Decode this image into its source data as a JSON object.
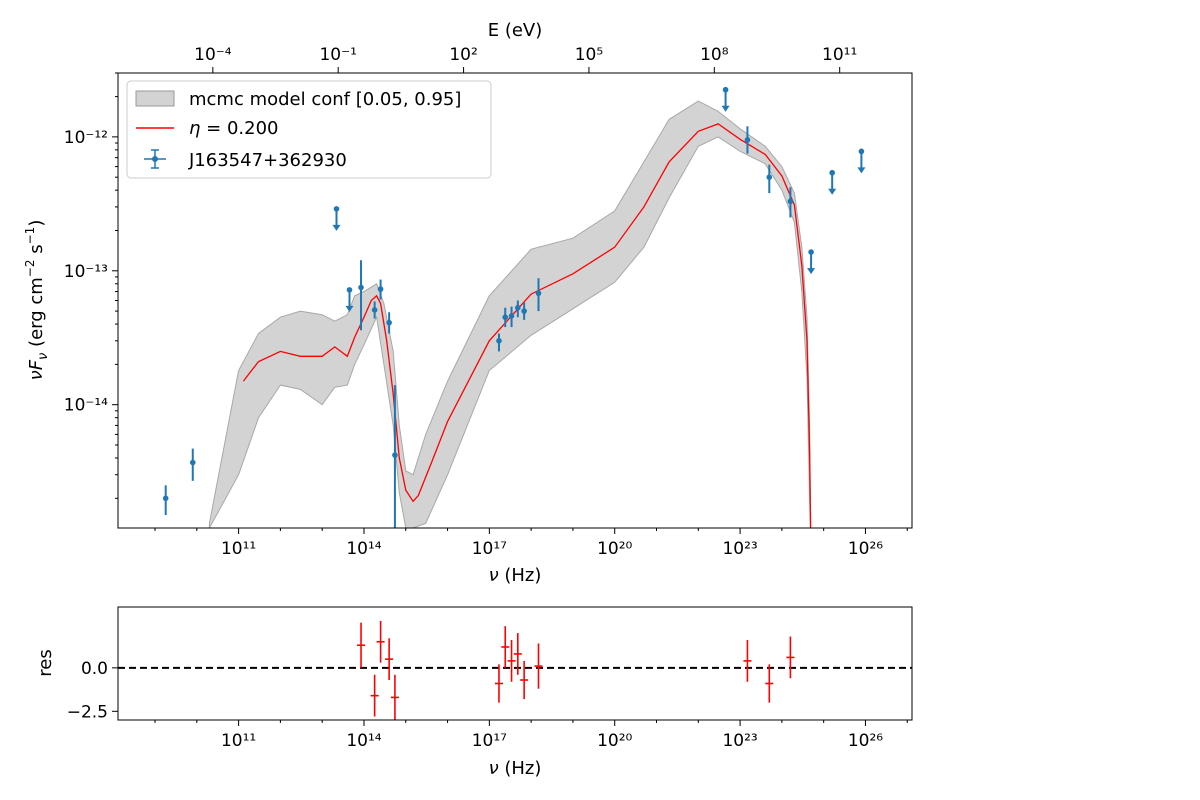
{
  "colors": {
    "data_points": "#1f77b4",
    "model_line": "#ff0000",
    "confidence_band": "#d3d3d3",
    "residuals": "#ff0000",
    "zero_line": "#000000"
  },
  "chart_data": [
    {
      "type": "scatter",
      "panel": "main",
      "xscale": "log",
      "yscale": "log",
      "xlabel": "ν  (Hz)",
      "ylabel": "νF_ν  (erg cm⁻² s⁻¹)",
      "top_xlabel": "E (eV)",
      "xlim": [
        130000000.0,
        1.3e+27
      ],
      "ylim": [
        1.2e-15,
        3e-12
      ],
      "x_ticks": [
        "10¹¹",
        "10¹⁴",
        "10¹⁷",
        "10²⁰",
        "10²³",
        "10²⁶"
      ],
      "x_tick_values": [
        100000000000.0,
        100000000000000.0,
        1e+17,
        1e+20,
        1e+23,
        1e+26
      ],
      "y_ticks": [
        "10⁻¹⁴",
        "10⁻¹³",
        "10⁻¹²"
      ],
      "y_tick_values": [
        1e-14,
        1e-13,
        1e-12
      ],
      "top_ticks": [
        "10⁻⁴",
        "10⁻¹",
        "10²",
        "10⁵",
        "10⁸",
        "10¹¹"
      ],
      "top_tick_values_ev": [
        0.0001,
        0.1,
        100.0,
        100000.0,
        100000000.0,
        100000000000.0
      ],
      "legend_position": "upper-left",
      "legend": [
        {
          "label": "mcmc model conf [0.05, 0.95]",
          "kind": "band"
        },
        {
          "label": "η = 0.200",
          "kind": "line"
        },
        {
          "label": "J163547+362930",
          "kind": "errorbar"
        }
      ],
      "points": [
        {
          "x": 1800000000.0,
          "y": 2e-15,
          "ylo": 1.5e-15,
          "yhi": 2.5e-15
        },
        {
          "x": 8000000000.0,
          "y": 3.7e-15,
          "ylo": 2.7e-15,
          "yhi": 4.7e-15
        },
        {
          "x": 180000000000000.0,
          "y": 5.1e-14,
          "ylo": 4.4e-14,
          "yhi": 5.9e-14
        },
        {
          "x": 250000000000000.0,
          "y": 7.3e-14,
          "ylo": 6.1e-14,
          "yhi": 8.6e-14
        },
        {
          "x": 400000000000000.0,
          "y": 4.1e-14,
          "ylo": 3.4e-14,
          "yhi": 4.9e-14
        },
        {
          "x": 85000000000000.0,
          "y": 7.5e-14,
          "ylo": 3.6e-14,
          "yhi": 1.2e-13
        },
        {
          "x": 550000000000000.0,
          "y": 4.2e-15,
          "ylo": 1.2e-15,
          "yhi": 1.4e-14
        },
        {
          "x": 1.7e+17,
          "y": 3e-14,
          "ylo": 2.5e-14,
          "yhi": 3.4e-14
        },
        {
          "x": 2.4e+17,
          "y": 4.5e-14,
          "ylo": 3.8e-14,
          "yhi": 5.3e-14
        },
        {
          "x": 3.4e+17,
          "y": 4.6e-14,
          "ylo": 3.8e-14,
          "yhi": 5.4e-14
        },
        {
          "x": 4.8e+17,
          "y": 5.3e-14,
          "ylo": 4.5e-14,
          "yhi": 6e-14
        },
        {
          "x": 6.8e+17,
          "y": 5e-14,
          "ylo": 4.3e-14,
          "yhi": 5.8e-14
        },
        {
          "x": 1.5e+18,
          "y": 6.8e-14,
          "ylo": 5e-14,
          "yhi": 8.8e-14
        },
        {
          "x": 1.5e+23,
          "y": 9.5e-13,
          "ylo": 7.5e-13,
          "yhi": 1.2e-12
        },
        {
          "x": 5e+23,
          "y": 5e-13,
          "ylo": 3.8e-13,
          "yhi": 6.2e-13
        },
        {
          "x": 1.6e+24,
          "y": 3.3e-13,
          "ylo": 2.5e-13,
          "yhi": 4.2e-13
        }
      ],
      "upper_limits": [
        {
          "x": 22000000000000.0,
          "y": 2.9e-13
        },
        {
          "x": 45000000000000.0,
          "y": 7.2e-14
        },
        {
          "x": 4.5e+22,
          "y": 2.25e-12
        },
        {
          "x": 5e+24,
          "y": 1.38e-13
        },
        {
          "x": 1.6e+25,
          "y": 5.4e-13
        },
        {
          "x": 8e+25,
          "y": 7.8e-13
        }
      ],
      "model": {
        "x": [
          130000000000.0,
          300000000000.0,
          1000000000000.0,
          3000000000000.0,
          10000000000000.0,
          20000000000000.0,
          40000000000000.0,
          60000000000000.0,
          100000000000000.0,
          150000000000000.0,
          200000000000000.0,
          250000000000000.0,
          350000000000000.0,
          500000000000000.0,
          700000000000000.0,
          1000000000000000.0,
          1500000000000000.0,
          2000000000000000.0,
          4000000000000000.0,
          1e+16,
          1e+17,
          1e+18,
          1e+19,
          1e+20,
          5e+20,
          2e+21,
          1e+22,
          3e+22,
          1e+23,
          4e+23,
          1e+24,
          2e+24,
          3e+24,
          4e+24,
          4.6e+24,
          4.9e+24
        ],
        "y": [
          1.5e-14,
          2.1e-14,
          2.5e-14,
          2.3e-14,
          2.3e-14,
          2.7e-14,
          2.3e-14,
          3.2e-14,
          4.5e-14,
          6e-14,
          6.5e-14,
          5.7e-14,
          3e-14,
          1.2e-14,
          4e-15,
          2.3e-15,
          1.9e-15,
          2.1e-15,
          3.6e-15,
          7.5e-15,
          3e-14,
          6.7e-14,
          9.5e-14,
          1.5e-13,
          3e-13,
          6.5e-13,
          1.1e-12,
          1.25e-12,
          9.6e-13,
          7.4e-13,
          5.1e-13,
          3.1e-13,
          1.1e-13,
          3e-14,
          4.5e-15,
          1e-15
        ]
      },
      "band": {
        "x": [
          20000000000.0,
          100000000000.0,
          300000000000.0,
          1000000000000.0,
          3000000000000.0,
          10000000000000.0,
          20000000000000.0,
          40000000000000.0,
          60000000000000.0,
          100000000000000.0,
          200000000000000.0,
          300000000000000.0,
          500000000000000.0,
          700000000000000.0,
          1000000000000000.0,
          1500000000000000.0,
          3000000000000000.0,
          1e+16,
          1e+17,
          1e+18,
          1e+19,
          1e+20,
          5e+20,
          2e+21,
          1e+22,
          3e+22,
          1e+23,
          4e+23,
          1e+24,
          2e+24,
          3e+24,
          4e+24,
          4.6e+24,
          4.9e+24
        ],
        "upper": [
          1.3e-15,
          1.8e-14,
          3.4e-14,
          4.5e-14,
          5e-14,
          4.7e-14,
          4.2e-14,
          4.7e-14,
          6.5e-14,
          7e-14,
          8e-14,
          5.7e-14,
          2.5e-14,
          7e-15,
          3.2e-15,
          3e-15,
          6e-15,
          1.5e-14,
          6.5e-14,
          1.45e-13,
          1.75e-13,
          2.8e-13,
          6.5e-13,
          1.35e-12,
          1.85e-12,
          1.55e-12,
          1.15e-12,
          8.5e-13,
          6e-13,
          3.8e-13,
          1.5e-13,
          4.5e-14,
          7e-15,
          1.3e-15
        ],
        "lower": [
          1.2e-15,
          3e-15,
          8e-15,
          1.4e-14,
          1.3e-14,
          1e-14,
          1.35e-14,
          1.4e-14,
          2e-14,
          2.8e-14,
          4.5e-14,
          2e-14,
          7e-15,
          2.2e-15,
          1.2e-15,
          1.2e-15,
          1.3e-15,
          3e-15,
          1.8e-14,
          3.3e-14,
          5.2e-14,
          8.2e-14,
          1.5e-13,
          3.5e-13,
          8.5e-13,
          1e-12,
          7.8e-13,
          6.3e-13,
          4e-13,
          2.3e-13,
          7e-14,
          1.6e-14,
          2e-15,
          1e-15
        ]
      }
    },
    {
      "type": "scatter",
      "panel": "residuals",
      "xscale": "log",
      "xlabel": "ν  (Hz)",
      "ylabel": "res",
      "xlim": [
        130000000.0,
        1.3e+27
      ],
      "ylim": [
        -3,
        3.5
      ],
      "x_ticks": [
        "10¹¹",
        "10¹⁴",
        "10¹⁷",
        "10²⁰",
        "10²³",
        "10²⁶"
      ],
      "x_tick_values": [
        100000000000.0,
        100000000000000.0,
        1e+17,
        1e+20,
        1e+23,
        1e+26
      ],
      "y_ticks": [
        "−2.5",
        "0.0"
      ],
      "y_tick_values": [
        -2.5,
        0
      ],
      "reference_line": 0,
      "points": [
        {
          "x": 85000000000000.0,
          "y": 1.3,
          "err": 1.3
        },
        {
          "x": 180000000000000.0,
          "y": -1.6,
          "err": 1.2
        },
        {
          "x": 250000000000000.0,
          "y": 1.5,
          "err": 1.2
        },
        {
          "x": 400000000000000.0,
          "y": 0.5,
          "err": 1.2
        },
        {
          "x": 550000000000000.0,
          "y": -1.7,
          "err": 1.3
        },
        {
          "x": 1.7e+17,
          "y": -0.9,
          "err": 1.1
        },
        {
          "x": 2.4e+17,
          "y": 1.2,
          "err": 1.2
        },
        {
          "x": 3.4e+17,
          "y": 0.4,
          "err": 1.2
        },
        {
          "x": 4.8e+17,
          "y": 0.8,
          "err": 1.2
        },
        {
          "x": 6.8e+17,
          "y": -0.7,
          "err": 1.1
        },
        {
          "x": 1.5e+18,
          "y": 0.1,
          "err": 1.3
        },
        {
          "x": 1.5e+23,
          "y": 0.4,
          "err": 1.2
        },
        {
          "x": 5e+23,
          "y": -0.9,
          "err": 1.1
        },
        {
          "x": 1.6e+24,
          "y": 0.6,
          "err": 1.2
        }
      ]
    }
  ]
}
